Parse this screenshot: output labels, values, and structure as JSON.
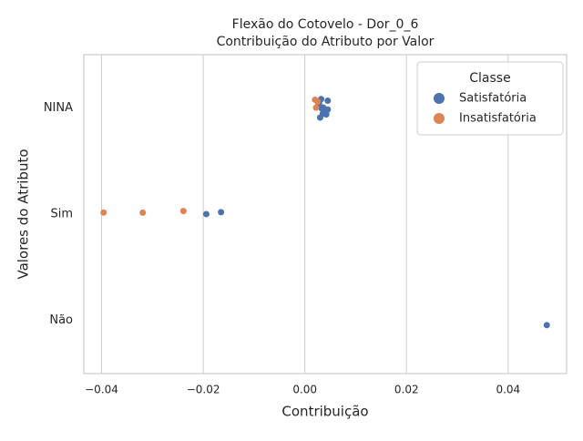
{
  "chart_data": {
    "type": "strip",
    "title": "Flexão do Cotovelo - Dor_0_6",
    "subtitle": "Contribuição do Atributo por Valor",
    "xlabel": "Contribuição",
    "ylabel": "Valores do Atributo",
    "categories": [
      "NINA",
      "Sim",
      "Não"
    ],
    "xlim": [
      -0.0435,
      0.0515
    ],
    "xticks": [
      {
        "value": -0.04,
        "label": "−0.04"
      },
      {
        "value": -0.02,
        "label": "−0.02"
      },
      {
        "value": 0,
        "label": "0.00"
      },
      {
        "value": 0.02,
        "label": "0.02"
      },
      {
        "value": 0.04,
        "label": "0.04"
      }
    ],
    "grid": true,
    "legend_title": "Classe",
    "legend_position": "upper right",
    "series": [
      {
        "name": "Satisfatória",
        "color": "#4c72b0",
        "category": [
          "NINA",
          "NINA",
          "NINA",
          "NINA",
          "NINA",
          "NINA",
          "NINA",
          "NINA",
          "NINA",
          "NINA",
          "NINA",
          "NINA",
          "Sim",
          "Sim",
          "Não"
        ],
        "values": [
          0.003,
          0.0033,
          0.0035,
          0.0038,
          0.004,
          0.0042,
          0.0045,
          0.0045,
          0.0028,
          0.0036,
          0.0026,
          0.0032,
          -0.0194,
          -0.0165,
          0.0476
        ]
      },
      {
        "name": "Insatisfatória",
        "color": "#dd8452",
        "category": [
          "NINA",
          "NINA",
          "NINA",
          "Sim",
          "Sim",
          "Sim"
        ],
        "values": [
          0.0025,
          0.002,
          0.0022,
          -0.0239,
          -0.0319,
          -0.0396
        ]
      }
    ]
  }
}
